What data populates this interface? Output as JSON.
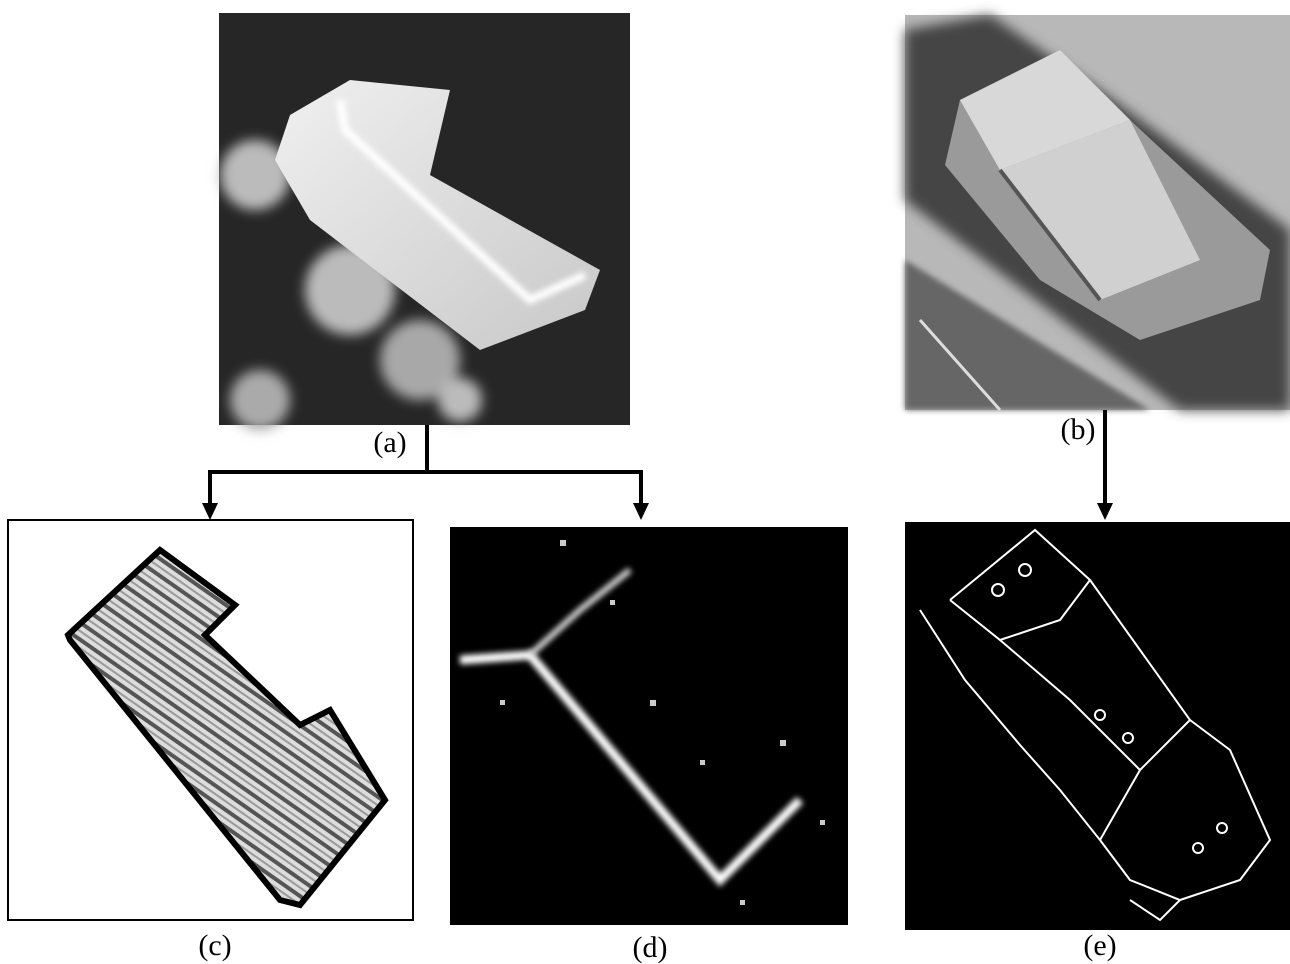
{
  "labels": {
    "a": "(a)",
    "b": "(b)",
    "c": "(c)",
    "d": "(d)",
    "e": "(e)"
  }
}
